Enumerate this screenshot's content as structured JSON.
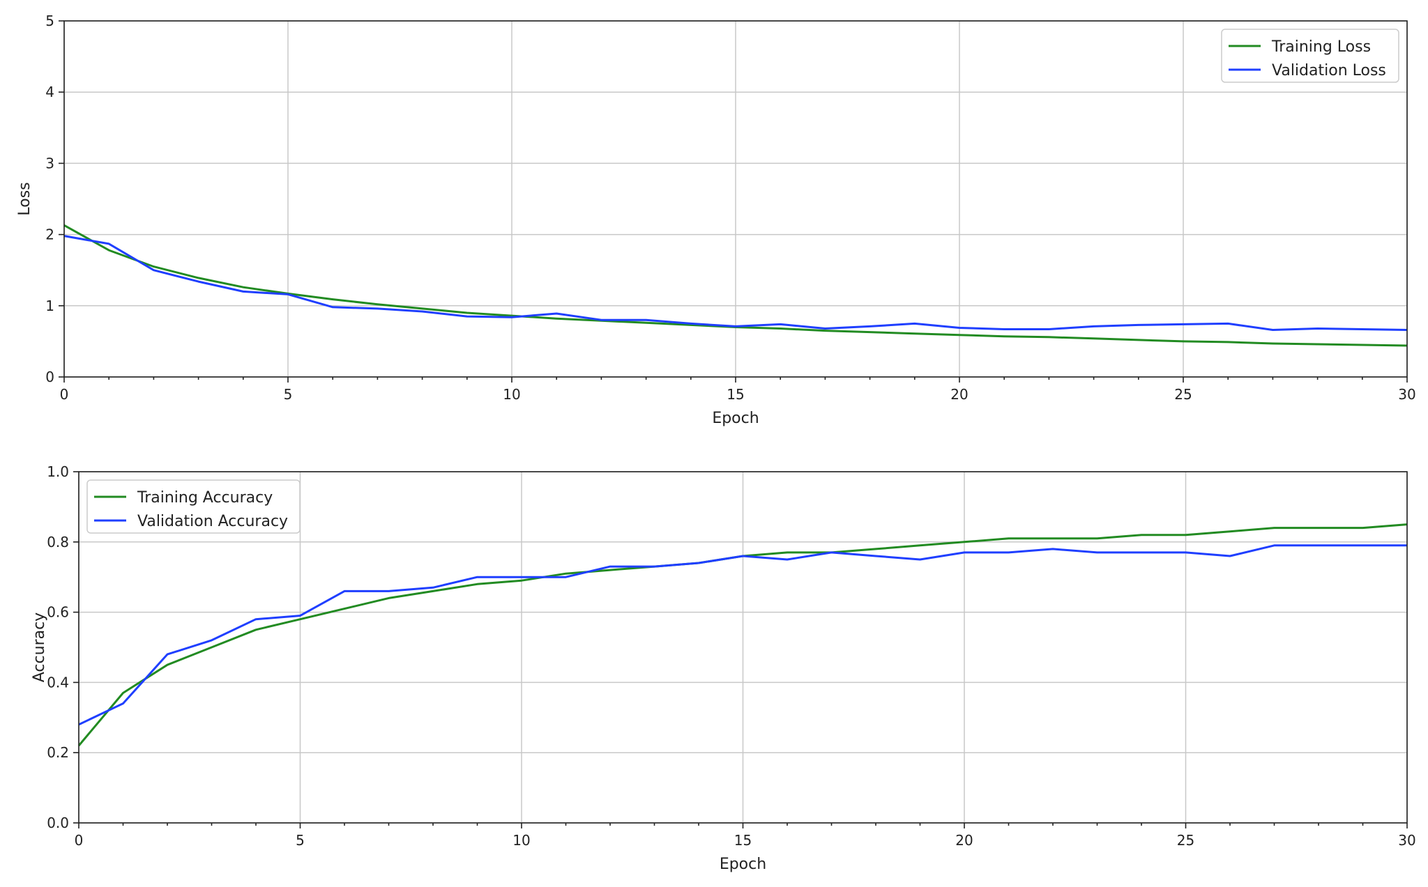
{
  "chart_data": [
    {
      "type": "line",
      "title": "",
      "xlabel": "Epoch",
      "ylabel": "Loss",
      "xlim": [
        0,
        30
      ],
      "ylim": [
        0,
        5
      ],
      "xticks": [
        0,
        5,
        10,
        15,
        20,
        25,
        30
      ],
      "yticks": [
        0,
        1,
        2,
        3,
        4,
        5
      ],
      "grid": true,
      "legend_position": "top-right",
      "series": [
        {
          "name": "Training Loss",
          "color": "#228b22",
          "x": [
            0,
            1,
            2,
            3,
            4,
            5,
            6,
            7,
            8,
            9,
            10,
            11,
            12,
            13,
            14,
            15,
            16,
            17,
            18,
            19,
            20,
            21,
            22,
            23,
            24,
            25,
            26,
            27,
            28,
            29,
            30
          ],
          "y": [
            2.13,
            1.78,
            1.55,
            1.39,
            1.26,
            1.17,
            1.09,
            1.02,
            0.96,
            0.9,
            0.86,
            0.82,
            0.79,
            0.76,
            0.73,
            0.7,
            0.68,
            0.65,
            0.63,
            0.61,
            0.59,
            0.57,
            0.56,
            0.54,
            0.52,
            0.5,
            0.49,
            0.47,
            0.46,
            0.45,
            0.44
          ]
        },
        {
          "name": "Validation Loss",
          "color": "#1f3fff",
          "x": [
            0,
            1,
            2,
            3,
            4,
            5,
            6,
            7,
            8,
            9,
            10,
            11,
            12,
            13,
            14,
            15,
            16,
            17,
            18,
            19,
            20,
            21,
            22,
            23,
            24,
            25,
            26,
            27,
            28,
            29,
            30
          ],
          "y": [
            1.98,
            1.87,
            1.5,
            1.34,
            1.2,
            1.16,
            0.98,
            0.96,
            0.92,
            0.85,
            0.84,
            0.89,
            0.8,
            0.8,
            0.75,
            0.71,
            0.74,
            0.68,
            0.71,
            0.75,
            0.69,
            0.67,
            0.67,
            0.71,
            0.73,
            0.74,
            0.75,
            0.66,
            0.68,
            0.67,
            0.66
          ]
        }
      ]
    },
    {
      "type": "line",
      "title": "",
      "xlabel": "Epoch",
      "ylabel": "Accuracy",
      "xlim": [
        0,
        30
      ],
      "ylim": [
        0,
        1
      ],
      "xticks": [
        0,
        5,
        10,
        15,
        20,
        25,
        30
      ],
      "yticks": [
        0.0,
        0.2,
        0.4,
        0.6,
        0.8,
        1.0
      ],
      "grid": true,
      "legend_position": "top-left",
      "series": [
        {
          "name": "Training Accuracy",
          "color": "#228b22",
          "x": [
            0,
            1,
            2,
            3,
            4,
            5,
            6,
            7,
            8,
            9,
            10,
            11,
            12,
            13,
            14,
            15,
            16,
            17,
            18,
            19,
            20,
            21,
            22,
            23,
            24,
            25,
            26,
            27,
            28,
            29,
            30
          ],
          "y": [
            0.22,
            0.37,
            0.45,
            0.5,
            0.55,
            0.58,
            0.61,
            0.64,
            0.66,
            0.68,
            0.69,
            0.71,
            0.72,
            0.73,
            0.74,
            0.76,
            0.77,
            0.77,
            0.78,
            0.79,
            0.8,
            0.81,
            0.81,
            0.81,
            0.82,
            0.82,
            0.83,
            0.84,
            0.84,
            0.84,
            0.85
          ]
        },
        {
          "name": "Validation Accuracy",
          "color": "#1f3fff",
          "x": [
            0,
            1,
            2,
            3,
            4,
            5,
            6,
            7,
            8,
            9,
            10,
            11,
            12,
            13,
            14,
            15,
            16,
            17,
            18,
            19,
            20,
            21,
            22,
            23,
            24,
            25,
            26,
            27,
            28,
            29,
            30
          ],
          "y": [
            0.28,
            0.34,
            0.48,
            0.52,
            0.58,
            0.59,
            0.66,
            0.66,
            0.67,
            0.7,
            0.7,
            0.7,
            0.73,
            0.73,
            0.74,
            0.76,
            0.75,
            0.77,
            0.76,
            0.75,
            0.77,
            0.77,
            0.78,
            0.77,
            0.77,
            0.77,
            0.76,
            0.79,
            0.79,
            0.79,
            0.79
          ]
        }
      ]
    }
  ]
}
